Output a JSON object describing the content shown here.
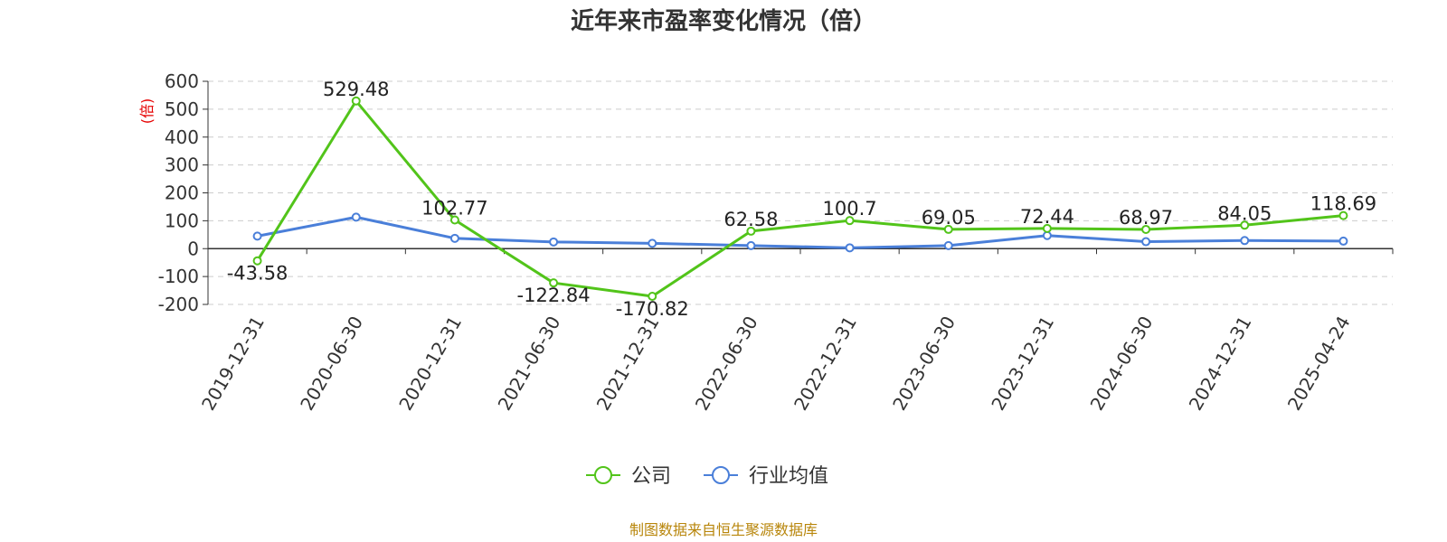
{
  "colors": {
    "company": "#52c41a",
    "industry": "#4a7fd9",
    "source": "#b8860b",
    "ylabel": "#e60000"
  },
  "chart_data": {
    "type": "line",
    "title": "近年来市盈率变化情况（倍）",
    "ylabel": "(倍)",
    "xlabel": "",
    "ylim": [
      -200,
      600
    ],
    "yticks": [
      600,
      500,
      400,
      300,
      200,
      100,
      0,
      -100,
      -200
    ],
    "grid": true,
    "legend_position": "bottom",
    "categories": [
      "2019-12-31",
      "2020-06-30",
      "2020-12-31",
      "2021-06-30",
      "2021-12-31",
      "2022-06-30",
      "2022-12-31",
      "2023-06-30",
      "2023-12-31",
      "2024-06-30",
      "2024-12-31",
      "2025-04-24"
    ],
    "series": [
      {
        "name": "公司",
        "values": [
          -43.58,
          529.48,
          102.77,
          -122.84,
          -170.82,
          62.58,
          100.7,
          69.05,
          72.44,
          68.97,
          84.05,
          118.69
        ],
        "labels": [
          "-43.58",
          "529.48",
          "102.77",
          "-122.84",
          "-170.82",
          "62.58",
          "100.7",
          "69.05",
          "72.44",
          "68.97",
          "84.05",
          "118.69"
        ]
      },
      {
        "name": "行业均值",
        "values": [
          45,
          113,
          37,
          24,
          19,
          11,
          3,
          11,
          47,
          25,
          29,
          27
        ]
      }
    ],
    "source": "制图数据来自恒生聚源数据库"
  }
}
